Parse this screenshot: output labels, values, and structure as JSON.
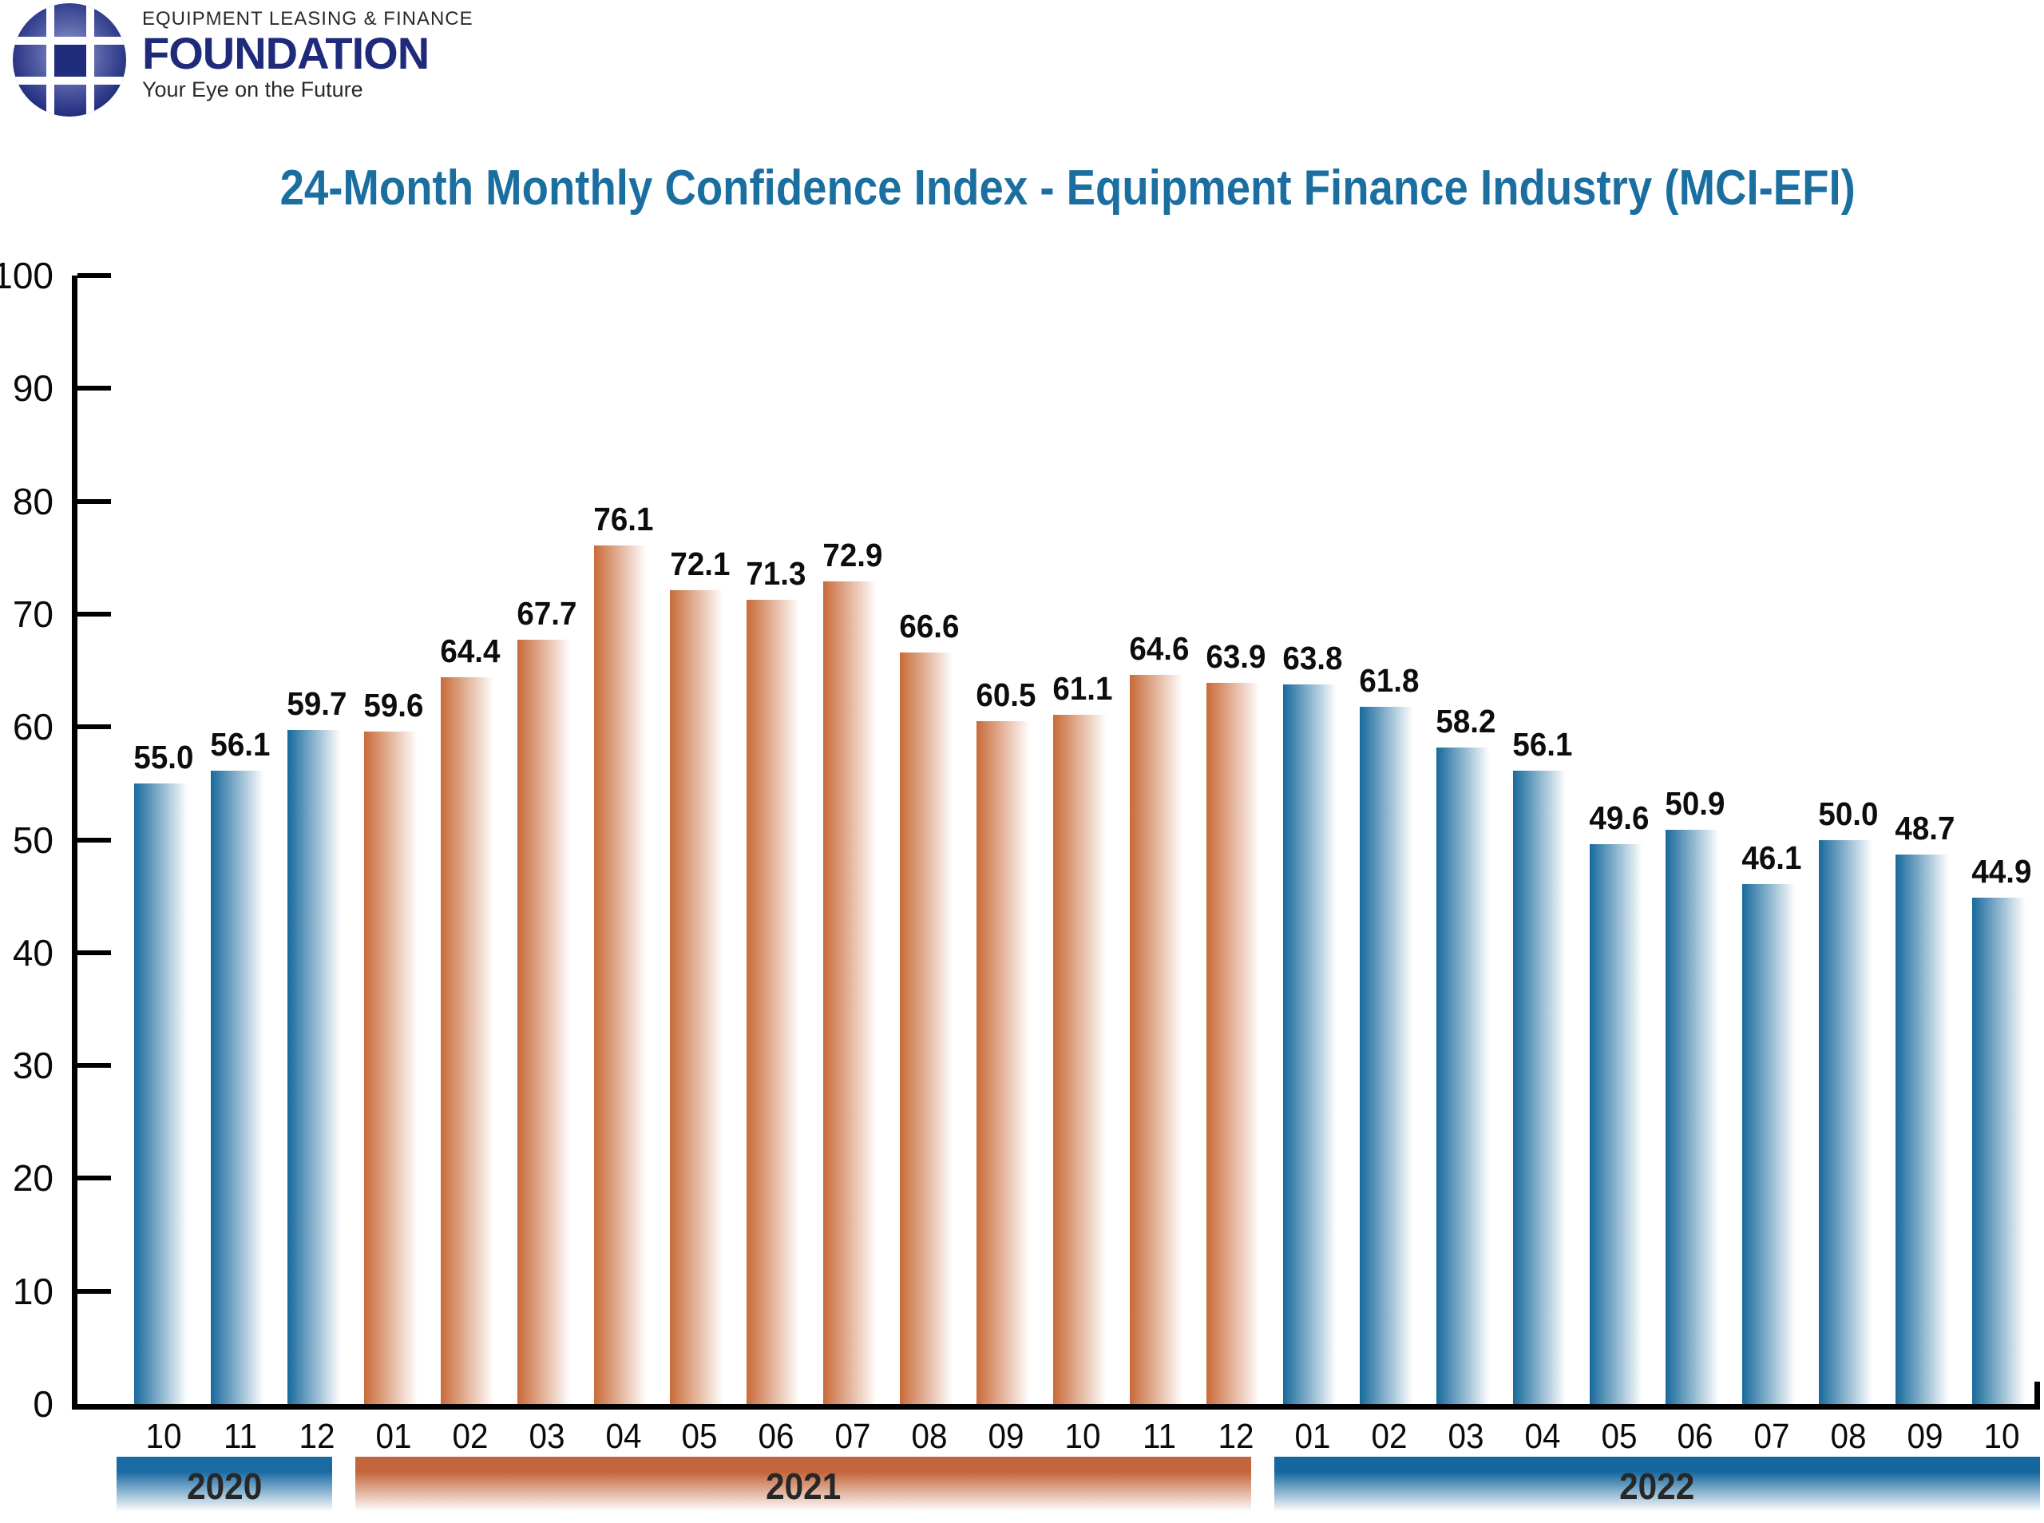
{
  "logo": {
    "line1": "EQUIPMENT LEASING & FINANCE",
    "line2": "FOUNDATION",
    "line3": "Your Eye on the Future",
    "navy": "#1f2b7a"
  },
  "chart": {
    "title": "24-Month Monthly Confidence Index - Equipment Finance Industry (MCI-EFI)",
    "title_color": "#1a6fa0"
  },
  "chart_data": {
    "type": "bar",
    "title": "24-Month Monthly Confidence Index - Equipment Finance Industry (MCI-EFI)",
    "xlabel": "",
    "ylabel": "",
    "ylim": [
      0,
      100
    ],
    "yticks": [
      0,
      10,
      20,
      30,
      40,
      50,
      60,
      70,
      80,
      90,
      100
    ],
    "grid": false,
    "legend_position": "none",
    "x": [
      "10",
      "11",
      "12",
      "01",
      "02",
      "03",
      "04",
      "05",
      "06",
      "07",
      "08",
      "09",
      "10",
      "11",
      "12",
      "01",
      "02",
      "03",
      "04",
      "05",
      "06",
      "07",
      "08",
      "09",
      "10"
    ],
    "values": [
      55.0,
      56.1,
      59.7,
      59.6,
      64.4,
      67.7,
      76.1,
      72.1,
      71.3,
      72.9,
      66.6,
      60.5,
      61.1,
      64.6,
      63.9,
      63.8,
      61.8,
      58.2,
      56.1,
      49.6,
      50.9,
      46.1,
      50.0,
      48.7,
      44.9
    ],
    "labels": [
      "55.0",
      "56.1",
      "59.7",
      "59.6",
      "64.4",
      "67.7",
      "76.1",
      "72.1",
      "71.3",
      "72.9",
      "66.6",
      "60.5",
      "61.1",
      "64.6",
      "63.9",
      "63.8",
      "61.8",
      "58.2",
      "56.1",
      "49.6",
      "50.9",
      "46.1",
      "50.0",
      "48.7",
      "44.9"
    ],
    "groups": [
      {
        "year": "2020",
        "months_count": 3,
        "bar_color": "#17699c",
        "band_color": "#1a6ba4"
      },
      {
        "year": "2021",
        "months_count": 12,
        "bar_color": "#c96a38",
        "band_color": "#c2653c"
      },
      {
        "year": "2022",
        "months_count": 10,
        "bar_color": "#17699c",
        "band_color": "#15679e"
      }
    ],
    "axis_color": "#000000",
    "value_label_color": "#0d0d0d"
  }
}
